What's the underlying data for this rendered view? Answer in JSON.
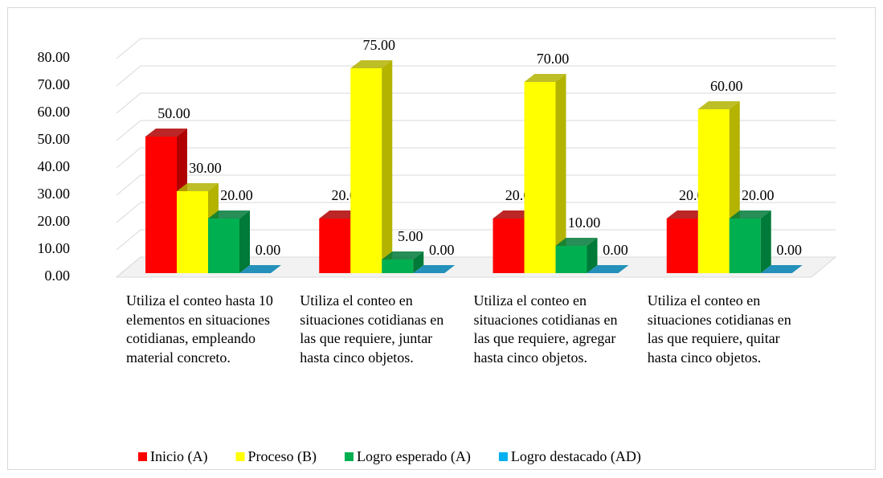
{
  "chart_data": {
    "type": "bar3d",
    "categories": [
      "Utiliza el conteo hasta 10 elementos en situaciones cotidianas, empleando material concreto.",
      "Utiliza el conteo en situaciones cotidianas en las que requiere, juntar hasta cinco objetos.",
      "Utiliza el conteo en situaciones cotidianas en las que requiere, agregar hasta cinco objetos.",
      "Utiliza el conteo en situaciones cotidianas en las que requiere, quitar hasta cinco objetos."
    ],
    "series": [
      {
        "name": "Inicio (A)",
        "color": "#ff0000",
        "side": "#b00000",
        "values": [
          50,
          20,
          20,
          20
        ],
        "value_labels": [
          "50.00",
          "20.00",
          "20.00",
          "20.00"
        ]
      },
      {
        "name": "Proceso (B)",
        "color": "#ffff00",
        "side": "#b3b300",
        "values": [
          30,
          75,
          70,
          60
        ],
        "value_labels": [
          "30.00",
          "75.00",
          "70.00",
          "60.00"
        ]
      },
      {
        "name": "Logro esperado (A)",
        "color": "#00b050",
        "side": "#007a38",
        "values": [
          20,
          5,
          10,
          20
        ],
        "value_labels": [
          "20.00",
          "5.00",
          "10.00",
          "20.00"
        ]
      },
      {
        "name": "Logro destacado (AD)",
        "color": "#00b0f0",
        "side": "#0080b0",
        "values": [
          0,
          0,
          0,
          0
        ],
        "value_labels": [
          "0.00",
          "0.00",
          "0.00",
          "0.00"
        ]
      }
    ],
    "ylim": [
      0,
      80
    ],
    "yticks": [
      {
        "value": 0,
        "label": "0.00"
      },
      {
        "value": 10,
        "label": "10.00"
      },
      {
        "value": 20,
        "label": "20.00"
      },
      {
        "value": 30,
        "label": "30.00"
      },
      {
        "value": 40,
        "label": "40.00"
      },
      {
        "value": 50,
        "label": "50.00"
      },
      {
        "value": 60,
        "label": "60.00"
      },
      {
        "value": 70,
        "label": "70.00"
      },
      {
        "value": 80,
        "label": "80.00"
      }
    ],
    "grid": true,
    "legend": "bottom"
  }
}
